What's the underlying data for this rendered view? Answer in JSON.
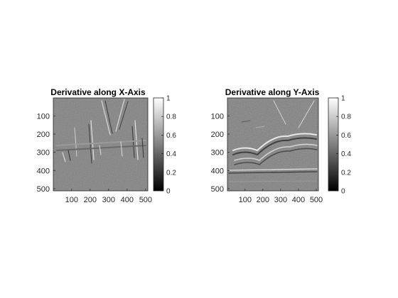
{
  "chart_data": [
    {
      "type": "heatmap",
      "title": "Derivative along X-Axis",
      "xlabel": "",
      "ylabel": "",
      "xlim": [
        1,
        512
      ],
      "ylim": [
        1,
        512
      ],
      "y_direction": "reverse",
      "x_ticks": [
        100,
        200,
        300,
        400,
        500
      ],
      "y_ticks": [
        100,
        200,
        300,
        400,
        500
      ],
      "colormap": "gray",
      "colorbar": {
        "limits": [
          0,
          1
        ],
        "ticks": [
          "0",
          "0.2",
          "0.4",
          "0.6",
          "0.8",
          "1"
        ]
      },
      "image_background_value": 0.5
    },
    {
      "type": "heatmap",
      "title": "Derivative along Y-Axis",
      "xlabel": "",
      "ylabel": "",
      "xlim": [
        1,
        512
      ],
      "ylim": [
        1,
        512
      ],
      "y_direction": "reverse",
      "x_ticks": [
        100,
        200,
        300,
        400,
        500
      ],
      "y_ticks": [
        100,
        200,
        300,
        400,
        500
      ],
      "colormap": "gray",
      "colorbar": {
        "limits": [
          0,
          1
        ],
        "ticks": [
          "0",
          "0.2",
          "0.4",
          "0.6",
          "0.8",
          "1"
        ]
      },
      "image_background_value": 0.5
    }
  ]
}
